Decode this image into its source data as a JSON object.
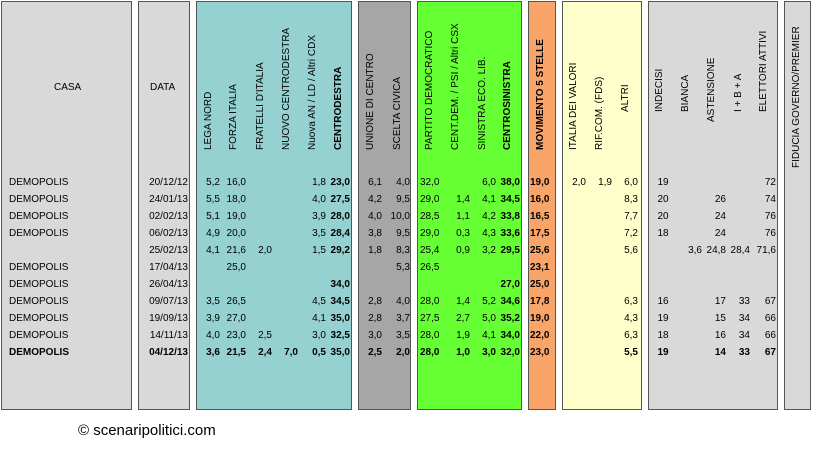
{
  "colors": {
    "casa": "#d9d9d9",
    "data": "#d9d9d9",
    "centrodestra": "#95d1d0",
    "centro": "#a6a6a6",
    "centrosinistra": "#66ff33",
    "m5s": "#f9a56a",
    "altri": "#ffffcc",
    "elettori": "#d9d9d9",
    "fiducia": "#d9d9d9"
  },
  "headers": {
    "casa": "CASA",
    "data": "DATA",
    "lega_nord": "LEGA NORD",
    "forza_italia": "FORZA ITALIA",
    "fratelli_ditalia": "FRATELLI D'ITALIA",
    "nuovo_centrodestra": "NUOVO  CENTRODESTRA",
    "nuova_an": "Nuova AN / LD / Altri CDX",
    "centrodestra": "CENTRODESTRA",
    "unione_di_centro": "UNIONE DI CENTRO",
    "scelta_civica": "SCELTA CIVICA",
    "partito_democratico": "PARTITO DEMOCRATICO",
    "cent_dem": "CENT.DEM. / PSI / Altri CSX",
    "sinistra_eco": "SINISTRA ECO. LIB.",
    "centrosinistra": "CENTROSINISTRA",
    "m5s": "MOVIMENTO 5 STELLE",
    "italia_dei_valori": "ITALIA DEI VALORI",
    "rif_com": "RIF.COM. (FDS)",
    "altri": "ALTRI",
    "indecisi": "INDECISI",
    "bianca": "BIANCA",
    "astensione": "ASTENSIONE",
    "ibpa": "I + B + A",
    "elettori_attivi": "ELETTORI ATTIVI",
    "fiducia": "FIDUCIA GOVERNO/PREMIER"
  },
  "rows": [
    {
      "casa": "DEMOPOLIS",
      "data": "20/12/12",
      "ln": "5,2",
      "fi": "16,0",
      "fdi": "",
      "ncd": "",
      "an": "1,8",
      "cdx": "23,0",
      "udc": "6,1",
      "sc": "4,0",
      "pd": "32,0",
      "cdem": "",
      "sel": "6,0",
      "csx": "38,0",
      "m5s": "19,0",
      "idv": "2,0",
      "rif": "1,9",
      "altri": "6,0",
      "ind": "19",
      "bia": "",
      "ast": "",
      "ibpa": "",
      "el": "72",
      "bold": false
    },
    {
      "casa": "DEMOPOLIS",
      "data": "24/01/13",
      "ln": "5,5",
      "fi": "18,0",
      "fdi": "",
      "ncd": "",
      "an": "4,0",
      "cdx": "27,5",
      "udc": "4,2",
      "sc": "9,5",
      "pd": "29,0",
      "cdem": "1,4",
      "sel": "4,1",
      "csx": "34,5",
      "m5s": "16,0",
      "idv": "",
      "rif": "",
      "altri": "8,3",
      "ind": "20",
      "bia": "",
      "ast": "26",
      "ibpa": "",
      "el": "74",
      "bold": false
    },
    {
      "casa": "DEMOPOLIS",
      "data": "02/02/13",
      "ln": "5,1",
      "fi": "19,0",
      "fdi": "",
      "ncd": "",
      "an": "3,9",
      "cdx": "28,0",
      "udc": "4,0",
      "sc": "10,0",
      "pd": "28,5",
      "cdem": "1,1",
      "sel": "4,2",
      "csx": "33,8",
      "m5s": "16,5",
      "idv": "",
      "rif": "",
      "altri": "7,7",
      "ind": "20",
      "bia": "",
      "ast": "24",
      "ibpa": "",
      "el": "76",
      "bold": false
    },
    {
      "casa": "DEMOPOLIS",
      "data": "06/02/13",
      "ln": "4,9",
      "fi": "20,0",
      "fdi": "",
      "ncd": "",
      "an": "3,5",
      "cdx": "28,4",
      "udc": "3,8",
      "sc": "9,5",
      "pd": "29,0",
      "cdem": "0,3",
      "sel": "4,3",
      "csx": "33,6",
      "m5s": "17,5",
      "idv": "",
      "rif": "",
      "altri": "7,2",
      "ind": "18",
      "bia": "",
      "ast": "24",
      "ibpa": "",
      "el": "76",
      "bold": false
    },
    {
      "casa": "",
      "data": "25/02/13",
      "ln": "4,1",
      "fi": "21,6",
      "fdi": "2,0",
      "ncd": "",
      "an": "1,5",
      "cdx": "29,2",
      "udc": "1,8",
      "sc": "8,3",
      "pd": "25,4",
      "cdem": "0,9",
      "sel": "3,2",
      "csx": "29,5",
      "m5s": "25,6",
      "idv": "",
      "rif": "",
      "altri": "5,6",
      "ind": "",
      "bia": "3,6",
      "ast": "24,8",
      "ibpa": "28,4",
      "el": "71,6",
      "bold": false
    },
    {
      "casa": "DEMOPOLIS",
      "data": "17/04/13",
      "ln": "",
      "fi": "25,0",
      "fdi": "",
      "ncd": "",
      "an": "",
      "cdx": "",
      "udc": "",
      "sc": "5,3",
      "pd": "26,5",
      "cdem": "",
      "sel": "",
      "csx": "",
      "m5s": "23,1",
      "idv": "",
      "rif": "",
      "altri": "",
      "ind": "",
      "bia": "",
      "ast": "",
      "ibpa": "",
      "el": "",
      "bold": false
    },
    {
      "casa": "DEMOPOLIS",
      "data": "26/04/13",
      "ln": "",
      "fi": "",
      "fdi": "",
      "ncd": "",
      "an": "",
      "cdx": "34,0",
      "udc": "",
      "sc": "",
      "pd": "",
      "cdem": "",
      "sel": "",
      "csx": "27,0",
      "m5s": "25,0",
      "idv": "",
      "rif": "",
      "altri": "",
      "ind": "",
      "bia": "",
      "ast": "",
      "ibpa": "",
      "el": "",
      "bold": false
    },
    {
      "casa": "DEMOPOLIS",
      "data": "09/07/13",
      "ln": "3,5",
      "fi": "26,5",
      "fdi": "",
      "ncd": "",
      "an": "4,5",
      "cdx": "34,5",
      "udc": "2,8",
      "sc": "4,0",
      "pd": "28,0",
      "cdem": "1,4",
      "sel": "5,2",
      "csx": "34,6",
      "m5s": "17,8",
      "idv": "",
      "rif": "",
      "altri": "6,3",
      "ind": "16",
      "bia": "",
      "ast": "17",
      "ibpa": "33",
      "el": "67",
      "bold": false
    },
    {
      "casa": "DEMOPOLIS",
      "data": "19/09/13",
      "ln": "3,9",
      "fi": "27,0",
      "fdi": "",
      "ncd": "",
      "an": "4,1",
      "cdx": "35,0",
      "udc": "2,8",
      "sc": "3,7",
      "pd": "27,5",
      "cdem": "2,7",
      "sel": "5,0",
      "csx": "35,2",
      "m5s": "19,0",
      "idv": "",
      "rif": "",
      "altri": "4,3",
      "ind": "19",
      "bia": "",
      "ast": "15",
      "ibpa": "34",
      "el": "66",
      "bold": false
    },
    {
      "casa": "DEMOPOLIS",
      "data": "14/11/13",
      "ln": "4,0",
      "fi": "23,0",
      "fdi": "2,5",
      "ncd": "",
      "an": "3,0",
      "cdx": "32,5",
      "udc": "3,0",
      "sc": "3,5",
      "pd": "28,0",
      "cdem": "1,9",
      "sel": "4,1",
      "csx": "34,0",
      "m5s": "22,0",
      "idv": "",
      "rif": "",
      "altri": "6,3",
      "ind": "18",
      "bia": "",
      "ast": "16",
      "ibpa": "34",
      "el": "66",
      "bold": false
    },
    {
      "casa": "DEMOPOLIS",
      "data": "04/12/13",
      "ln": "3,6",
      "fi": "21,5",
      "fdi": "2,4",
      "ncd": "7,0",
      "an": "0,5",
      "cdx": "35,0",
      "udc": "2,5",
      "sc": "2,0",
      "pd": "28,0",
      "cdem": "1,0",
      "sel": "3,0",
      "csx": "32,0",
      "m5s": "23,0",
      "idv": "",
      "rif": "",
      "altri": "5,5",
      "ind": "19",
      "bia": "",
      "ast": "14",
      "ibpa": "33",
      "el": "67",
      "bold": true
    }
  ],
  "footer": {
    "copyright": "© scenaripolitici.com"
  }
}
